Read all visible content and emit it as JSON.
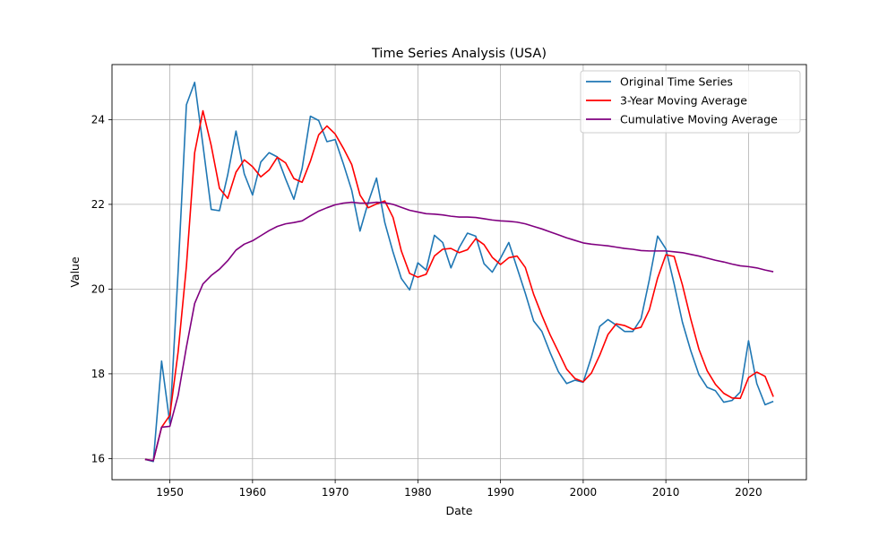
{
  "chart_data": {
    "type": "line",
    "title": "Time Series Analysis (USA)",
    "xlabel": "Date",
    "ylabel": "Value",
    "xlim": [
      1943,
      2027
    ],
    "ylim": [
      15.5,
      25.3
    ],
    "xticks": [
      1950,
      1960,
      1970,
      1980,
      1990,
      2000,
      2010,
      2020
    ],
    "yticks": [
      16,
      18,
      20,
      22,
      24
    ],
    "grid": true,
    "legend_position": "top-right",
    "x": [
      1947,
      1948,
      1949,
      1950,
      1951,
      1952,
      1953,
      1954,
      1955,
      1956,
      1957,
      1958,
      1959,
      1960,
      1961,
      1962,
      1963,
      1964,
      1965,
      1966,
      1967,
      1968,
      1969,
      1970,
      1971,
      1972,
      1973,
      1974,
      1975,
      1976,
      1977,
      1978,
      1979,
      1980,
      1981,
      1982,
      1983,
      1984,
      1985,
      1986,
      1987,
      1988,
      1989,
      1990,
      1991,
      1992,
      1993,
      1994,
      1995,
      1996,
      1997,
      1998,
      1999,
      2000,
      2001,
      2002,
      2003,
      2004,
      2005,
      2006,
      2007,
      2008,
      2009,
      2010,
      2011,
      2012,
      2013,
      2014,
      2015,
      2016,
      2017,
      2018,
      2019,
      2020,
      2021,
      2022,
      2023
    ],
    "series": [
      {
        "name": "Original Time Series",
        "color": "#1f77b4",
        "values": [
          15.98,
          15.93,
          18.3,
          16.83,
          20.43,
          24.35,
          24.88,
          23.4,
          21.88,
          21.85,
          22.7,
          23.73,
          22.72,
          22.22,
          23.0,
          23.22,
          23.12,
          22.6,
          22.12,
          22.85,
          24.08,
          23.98,
          23.48,
          23.53,
          22.95,
          22.33,
          21.37,
          22.05,
          22.62,
          21.57,
          20.87,
          20.25,
          19.98,
          20.62,
          20.45,
          21.27,
          21.1,
          20.5,
          20.98,
          21.32,
          21.25,
          20.6,
          20.4,
          20.73,
          21.1,
          20.5,
          19.9,
          19.25,
          19.0,
          18.5,
          18.05,
          17.77,
          17.85,
          17.8,
          18.4,
          19.12,
          19.28,
          19.15,
          19.0,
          19.0,
          19.3,
          20.22,
          21.25,
          20.95,
          20.12,
          19.22,
          18.55,
          17.98,
          17.68,
          17.6,
          17.33,
          17.37,
          17.57,
          18.78,
          17.77,
          17.27,
          17.35
        ]
      },
      {
        "name": "3-Year Moving Average",
        "color": "#ff0000",
        "values": [
          15.98,
          15.95,
          16.74,
          17.02,
          18.52,
          20.54,
          23.22,
          24.21,
          23.39,
          22.38,
          22.14,
          22.76,
          23.05,
          22.89,
          22.65,
          22.81,
          23.11,
          22.98,
          22.61,
          22.52,
          23.02,
          23.64,
          23.85,
          23.66,
          23.32,
          22.94,
          22.22,
          21.92,
          22.01,
          22.08,
          21.69,
          20.9,
          20.37,
          20.28,
          20.35,
          20.78,
          20.94,
          20.96,
          20.86,
          20.93,
          21.19,
          21.05,
          20.75,
          20.58,
          20.74,
          20.78,
          20.51,
          19.88,
          19.38,
          18.92,
          18.52,
          18.11,
          17.89,
          17.81,
          18.02,
          18.44,
          18.93,
          19.18,
          19.14,
          19.05,
          19.1,
          19.51,
          20.26,
          20.81,
          20.77,
          20.1,
          19.3,
          18.58,
          18.07,
          17.75,
          17.54,
          17.43,
          17.42,
          17.91,
          18.04,
          17.94,
          17.46
        ]
      },
      {
        "name": "Cumulative Moving Average",
        "color": "#800080",
        "values": [
          15.98,
          15.95,
          16.74,
          16.76,
          17.49,
          18.63,
          19.66,
          20.12,
          20.32,
          20.47,
          20.67,
          20.92,
          21.06,
          21.14,
          21.26,
          21.38,
          21.48,
          21.54,
          21.57,
          21.61,
          21.73,
          21.84,
          21.92,
          21.99,
          22.03,
          22.05,
          22.03,
          22.03,
          22.05,
          22.04,
          22.0,
          21.93,
          21.86,
          21.82,
          21.78,
          21.77,
          21.75,
          21.72,
          21.7,
          21.7,
          21.69,
          21.66,
          21.63,
          21.61,
          21.6,
          21.58,
          21.54,
          21.48,
          21.42,
          21.35,
          21.28,
          21.21,
          21.15,
          21.09,
          21.06,
          21.04,
          21.02,
          20.99,
          20.96,
          20.94,
          20.91,
          20.9,
          20.9,
          20.9,
          20.88,
          20.86,
          20.82,
          20.78,
          20.73,
          20.68,
          20.64,
          20.59,
          20.55,
          20.53,
          20.5,
          20.45,
          20.41
        ]
      }
    ]
  }
}
